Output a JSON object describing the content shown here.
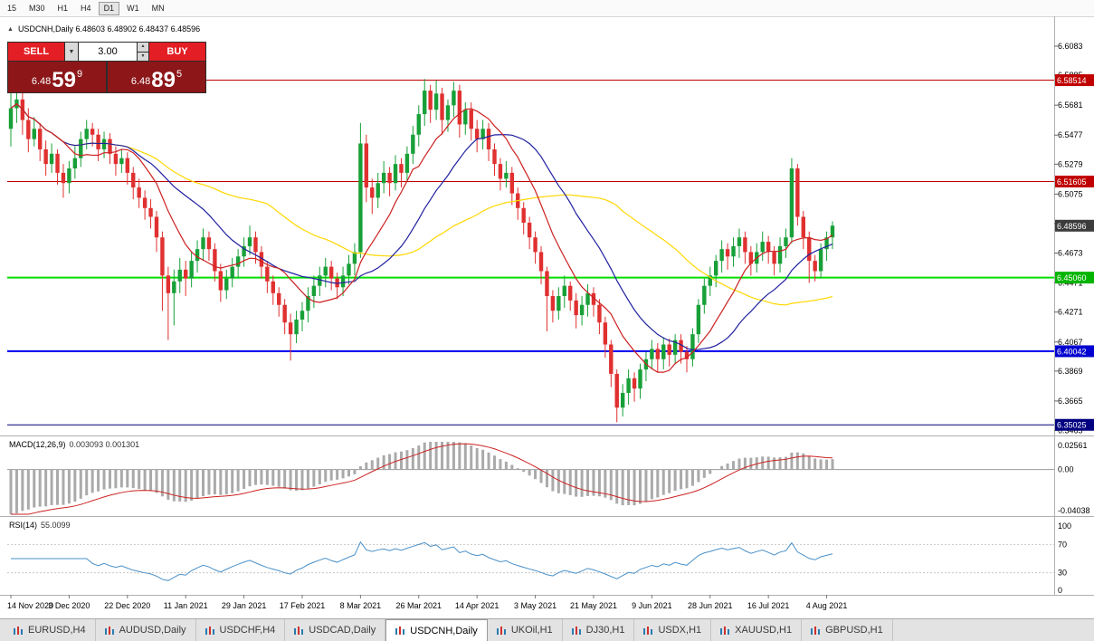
{
  "toolbar": {
    "timeframes": [
      {
        "label": "15",
        "active": false
      },
      {
        "label": "M30",
        "active": false
      },
      {
        "label": "H1",
        "active": false
      },
      {
        "label": "H4",
        "active": false
      },
      {
        "label": "D1",
        "active": true
      },
      {
        "label": "W1",
        "active": false
      },
      {
        "label": "MN",
        "active": false
      }
    ]
  },
  "icons": {
    "collapse": "▲",
    "dropdown": "▼",
    "spin_up": "▲",
    "spin_down": "▼"
  },
  "chart": {
    "symbol_label": "USDCNH,Daily",
    "ohlc": "6.48603 6.48902 6.48437 6.48596"
  },
  "trade_panel": {
    "sell_label": "SELL",
    "buy_label": "BUY",
    "volume": "3.00",
    "sell_price": {
      "base": "6.48",
      "big": "59",
      "sup": "9"
    },
    "buy_price": {
      "base": "6.48",
      "big": "89",
      "sup": "5"
    }
  },
  "price_axis": {
    "ticks": [
      "6.6083",
      "6.5885",
      "6.5681",
      "6.5477",
      "6.5279",
      "6.5075",
      "6.4875",
      "6.4673",
      "6.4471",
      "6.4271",
      "6.4067",
      "6.3869",
      "6.3665",
      "6.3465"
    ],
    "badges": [
      {
        "label": "6.58514",
        "price": 6.58514,
        "bg": "#c00000",
        "fg": "#ffffff"
      },
      {
        "label": "6.51605",
        "price": 6.51605,
        "bg": "#c00000",
        "fg": "#ffffff"
      },
      {
        "label": "6.48596",
        "price": 6.48596,
        "bg": "#3c3c3c",
        "fg": "#ffffff"
      },
      {
        "label": "6.45060",
        "price": 6.4506,
        "bg": "#00b400",
        "fg": "#ffffff"
      },
      {
        "label": "6.40042",
        "price": 6.40042,
        "bg": "#0000d0",
        "fg": "#ffffff"
      },
      {
        "label": "6.35025",
        "price": 6.35025,
        "bg": "#000080",
        "fg": "#ffffff"
      }
    ]
  },
  "levels": [
    {
      "price": 6.58514,
      "color": "#c00000",
      "width": 1
    },
    {
      "price": 6.51605,
      "color": "#c00000",
      "width": 1
    },
    {
      "price": 6.4506,
      "color": "#00dd00",
      "width": 2
    },
    {
      "price": 6.40042,
      "color": "#0000ee",
      "width": 2
    },
    {
      "price": 6.35025,
      "color": "#000080",
      "width": 1
    }
  ],
  "macd": {
    "name": "MACD(12,26,9)",
    "values": "0.003093 0.001301",
    "params": [
      12,
      26,
      9
    ],
    "axis": [
      "0.02561",
      "0.00",
      "-0.04038"
    ],
    "colors": {
      "histogram": "#aaaaaa",
      "signal": "#cc2222"
    }
  },
  "rsi": {
    "name": "RSI(14)",
    "value": "55.0099",
    "period": 14,
    "axis": [
      "100",
      "70",
      "30",
      "0"
    ],
    "levels": [
      70,
      30
    ],
    "color": "#4a90c8"
  },
  "tabs": [
    {
      "label": "EURUSD,H4",
      "active": false
    },
    {
      "label": "AUDUSD,Daily",
      "active": false
    },
    {
      "label": "USDCHF,H4",
      "active": false
    },
    {
      "label": "USDCAD,Daily",
      "active": false
    },
    {
      "label": "USDCNH,Daily",
      "active": true
    },
    {
      "label": "UKOil,H1",
      "active": false
    },
    {
      "label": "DJ30,H1",
      "active": false
    },
    {
      "label": "USDX,H1",
      "active": false
    },
    {
      "label": "XAUUSD,H1",
      "active": false
    },
    {
      "label": "GBPUSD,H1",
      "active": false
    }
  ],
  "chart_data": {
    "type": "candlestick",
    "symbol": "USDCNH",
    "timeframe": "Daily",
    "ohlc_current": {
      "open": 6.48603,
      "high": 6.48902,
      "low": 6.48437,
      "close": 6.48596
    },
    "y_range": [
      6.343,
      6.6225
    ],
    "colors": {
      "up": "#18a038",
      "down": "#e03030"
    },
    "moving_averages": [
      {
        "name": "slow-ma",
        "period": 45,
        "color": "#ffd700"
      },
      {
        "name": "medium-ma",
        "period": 21,
        "color": "#2020a0"
      },
      {
        "name": "fast-ma",
        "period": 10,
        "color": "#cc2020"
      }
    ],
    "dates": [
      "14 Nov 2020",
      "3 Dec 2020",
      "22 Dec 2020",
      "11 Jan 2021",
      "29 Jan 2021",
      "17 Feb 2021",
      "8 Mar 2021",
      "26 Mar 2021",
      "14 Apr 2021",
      "3 May 2021",
      "21 May 2021",
      "9 Jun 2021",
      "28 Jun 2021",
      "16 Jul 2021",
      "4 Aug 2021"
    ],
    "candles": [
      [
        6.552,
        6.585,
        6.54,
        6.566
      ],
      [
        6.566,
        6.584,
        6.556,
        6.572
      ],
      [
        6.572,
        6.578,
        6.548,
        6.558
      ],
      [
        6.558,
        6.566,
        6.536,
        6.545
      ],
      [
        6.545,
        6.56,
        6.54,
        6.552
      ],
      [
        6.552,
        6.556,
        6.53,
        6.538
      ],
      [
        6.538,
        6.544,
        6.52,
        6.528
      ],
      [
        6.528,
        6.542,
        6.522,
        6.535
      ],
      [
        6.535,
        6.538,
        6.514,
        6.522
      ],
      [
        6.522,
        6.528,
        6.505,
        6.515
      ],
      [
        6.515,
        6.53,
        6.508,
        6.525
      ],
      [
        6.525,
        6.54,
        6.518,
        6.532
      ],
      [
        6.532,
        6.55,
        6.526,
        6.545
      ],
      [
        6.545,
        6.558,
        6.538,
        6.552
      ],
      [
        6.552,
        6.556,
        6.54,
        6.548
      ],
      [
        6.548,
        6.552,
        6.53,
        6.538
      ],
      [
        6.538,
        6.55,
        6.532,
        6.545
      ],
      [
        6.545,
        6.549,
        6.528,
        6.535
      ],
      [
        6.535,
        6.54,
        6.52,
        6.528
      ],
      [
        6.528,
        6.538,
        6.522,
        6.532
      ],
      [
        6.532,
        6.536,
        6.514,
        6.522
      ],
      [
        6.522,
        6.526,
        6.504,
        6.512
      ],
      [
        6.512,
        6.518,
        6.498,
        6.505
      ],
      [
        6.505,
        6.51,
        6.49,
        6.498
      ],
      [
        6.498,
        6.504,
        6.484,
        6.492
      ],
      [
        6.492,
        6.496,
        6.468,
        6.478
      ],
      [
        6.478,
        6.482,
        6.428,
        6.452
      ],
      [
        6.452,
        6.458,
        6.408,
        6.44
      ],
      [
        6.44,
        6.456,
        6.418,
        6.448
      ],
      [
        6.448,
        6.464,
        6.44,
        6.456
      ],
      [
        6.456,
        6.462,
        6.438,
        6.45
      ],
      [
        6.45,
        6.468,
        6.444,
        6.462
      ],
      [
        6.462,
        6.476,
        6.454,
        6.47
      ],
      [
        6.47,
        6.484,
        6.462,
        6.478
      ],
      [
        6.478,
        6.482,
        6.462,
        6.47
      ],
      [
        6.47,
        6.474,
        6.448,
        6.455
      ],
      [
        6.455,
        6.46,
        6.434,
        6.442
      ],
      [
        6.442,
        6.456,
        6.436,
        6.45
      ],
      [
        6.45,
        6.464,
        6.444,
        6.458
      ],
      [
        6.458,
        6.47,
        6.45,
        6.465
      ],
      [
        6.465,
        6.478,
        6.458,
        6.472
      ],
      [
        6.472,
        6.486,
        6.466,
        6.478
      ],
      [
        6.478,
        6.482,
        6.46,
        6.468
      ],
      [
        6.468,
        6.472,
        6.45,
        6.458
      ],
      [
        6.458,
        6.462,
        6.44,
        6.448
      ],
      [
        6.448,
        6.452,
        6.432,
        6.44
      ],
      [
        6.44,
        6.444,
        6.424,
        6.432
      ],
      [
        6.432,
        6.436,
        6.412,
        6.42
      ],
      [
        6.42,
        6.426,
        6.394,
        6.412
      ],
      [
        6.412,
        6.428,
        6.406,
        6.422
      ],
      [
        6.422,
        6.434,
        6.414,
        6.428
      ],
      [
        6.428,
        6.444,
        6.42,
        6.438
      ],
      [
        6.438,
        6.452,
        6.43,
        6.445
      ],
      [
        6.445,
        6.458,
        6.438,
        6.452
      ],
      [
        6.452,
        6.464,
        6.444,
        6.458
      ],
      [
        6.458,
        6.462,
        6.442,
        6.45
      ],
      [
        6.45,
        6.454,
        6.436,
        6.444
      ],
      [
        6.444,
        6.458,
        6.438,
        6.452
      ],
      [
        6.452,
        6.466,
        6.446,
        6.46
      ],
      [
        6.46,
        6.474,
        6.452,
        6.468
      ],
      [
        6.468,
        6.556,
        6.464,
        6.542
      ],
      [
        6.542,
        6.548,
        6.502,
        6.512
      ],
      [
        6.512,
        6.518,
        6.494,
        6.505
      ],
      [
        6.505,
        6.522,
        6.498,
        6.515
      ],
      [
        6.515,
        6.53,
        6.508,
        6.522
      ],
      [
        6.522,
        6.526,
        6.506,
        6.515
      ],
      [
        6.515,
        6.534,
        6.51,
        6.528
      ],
      [
        6.528,
        6.532,
        6.512,
        6.522
      ],
      [
        6.522,
        6.54,
        6.516,
        6.535
      ],
      [
        6.535,
        6.554,
        6.528,
        6.548
      ],
      [
        6.548,
        6.568,
        6.54,
        6.562
      ],
      [
        6.562,
        6.586,
        6.554,
        6.578
      ],
      [
        6.578,
        6.582,
        6.556,
        6.565
      ],
      [
        6.565,
        6.585,
        6.558,
        6.576
      ],
      [
        6.576,
        6.58,
        6.548,
        6.558
      ],
      [
        6.558,
        6.572,
        6.55,
        6.568
      ],
      [
        6.568,
        6.584,
        6.56,
        6.578
      ],
      [
        6.578,
        6.582,
        6.546,
        6.555
      ],
      [
        6.555,
        6.57,
        6.548,
        6.565
      ],
      [
        6.565,
        6.57,
        6.544,
        6.552
      ],
      [
        6.552,
        6.558,
        6.536,
        6.545
      ],
      [
        6.545,
        6.558,
        6.538,
        6.552
      ],
      [
        6.552,
        6.556,
        6.53,
        6.538
      ],
      [
        6.538,
        6.542,
        6.52,
        6.528
      ],
      [
        6.528,
        6.532,
        6.51,
        6.518
      ],
      [
        6.518,
        6.53,
        6.512,
        6.522
      ],
      [
        6.522,
        6.526,
        6.5,
        6.508
      ],
      [
        6.508,
        6.512,
        6.49,
        6.498
      ],
      [
        6.498,
        6.502,
        6.48,
        6.488
      ],
      [
        6.488,
        6.492,
        6.47,
        6.478
      ],
      [
        6.478,
        6.482,
        6.46,
        6.468
      ],
      [
        6.468,
        6.472,
        6.446,
        6.455
      ],
      [
        6.455,
        6.458,
        6.414,
        6.438
      ],
      [
        6.438,
        6.442,
        6.42,
        6.428
      ],
      [
        6.428,
        6.444,
        6.422,
        6.438
      ],
      [
        6.438,
        6.452,
        6.43,
        6.445
      ],
      [
        6.445,
        6.448,
        6.428,
        6.435
      ],
      [
        6.435,
        6.44,
        6.416,
        6.425
      ],
      [
        6.425,
        6.438,
        6.418,
        6.432
      ],
      [
        6.432,
        6.446,
        6.424,
        6.44
      ],
      [
        6.44,
        6.444,
        6.424,
        6.432
      ],
      [
        6.432,
        6.436,
        6.412,
        6.42
      ],
      [
        6.42,
        6.424,
        6.396,
        6.405
      ],
      [
        6.405,
        6.408,
        6.376,
        6.385
      ],
      [
        6.385,
        6.388,
        6.352,
        6.362
      ],
      [
        6.362,
        6.378,
        6.356,
        6.372
      ],
      [
        6.372,
        6.388,
        6.364,
        6.382
      ],
      [
        6.382,
        6.386,
        6.366,
        6.375
      ],
      [
        6.375,
        6.392,
        6.368,
        6.388
      ],
      [
        6.388,
        6.4,
        6.38,
        6.395
      ],
      [
        6.395,
        6.408,
        6.388,
        6.402
      ],
      [
        6.402,
        6.406,
        6.386,
        6.395
      ],
      [
        6.395,
        6.41,
        6.388,
        6.405
      ],
      [
        6.405,
        6.409,
        6.39,
        6.398
      ],
      [
        6.398,
        6.412,
        6.392,
        6.408
      ],
      [
        6.408,
        6.412,
        6.392,
        6.4
      ],
      [
        6.4,
        6.404,
        6.386,
        6.395
      ],
      [
        6.395,
        6.416,
        6.39,
        6.412
      ],
      [
        6.412,
        6.436,
        6.406,
        6.432
      ],
      [
        6.432,
        6.45,
        6.426,
        6.445
      ],
      [
        6.445,
        6.458,
        6.438,
        6.452
      ],
      [
        6.452,
        6.466,
        6.444,
        6.462
      ],
      [
        6.462,
        6.476,
        6.454,
        6.47
      ],
      [
        6.47,
        6.474,
        6.456,
        6.465
      ],
      [
        6.465,
        6.478,
        6.458,
        6.472
      ],
      [
        6.472,
        6.484,
        6.464,
        6.478
      ],
      [
        6.478,
        6.482,
        6.46,
        6.468
      ],
      [
        6.468,
        6.472,
        6.452,
        6.46
      ],
      [
        6.46,
        6.474,
        6.454,
        6.468
      ],
      [
        6.468,
        6.482,
        6.462,
        6.475
      ],
      [
        6.475,
        6.479,
        6.46,
        6.468
      ],
      [
        6.468,
        6.472,
        6.452,
        6.46
      ],
      [
        6.46,
        6.478,
        6.454,
        6.472
      ],
      [
        6.472,
        6.484,
        6.464,
        6.478
      ],
      [
        6.478,
        6.532,
        6.474,
        6.525
      ],
      [
        6.525,
        6.528,
        6.486,
        6.492
      ],
      [
        6.492,
        6.496,
        6.47,
        6.478
      ],
      [
        6.478,
        6.482,
        6.447,
        6.462
      ],
      [
        6.462,
        6.466,
        6.448,
        6.455
      ],
      [
        6.455,
        6.474,
        6.45,
        6.47
      ],
      [
        6.47,
        6.482,
        6.462,
        6.478
      ],
      [
        6.478,
        6.489,
        6.47,
        6.486
      ]
    ]
  }
}
